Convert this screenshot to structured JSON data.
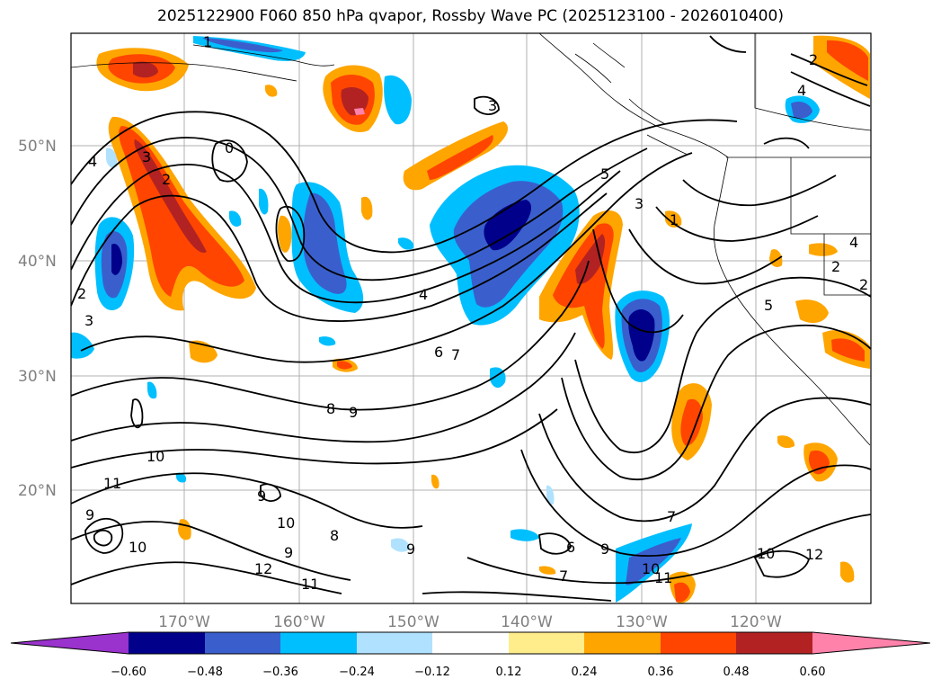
{
  "title": "2025122900 F060 850 hPa qvapor, Rossby Wave PC (2025123100 - 2026010400)",
  "lat_labels": [
    "50°N",
    "40°N",
    "30°N",
    "20°N"
  ],
  "lon_labels": [
    "170°W",
    "160°W",
    "150°W",
    "140°W",
    "130°W",
    "120°W"
  ],
  "colorbar": {
    "ticks": [
      "−0.60",
      "−0.48",
      "−0.36",
      "−0.24",
      "−0.12",
      "0.12",
      "0.24",
      "0.36",
      "0.48",
      "0.60"
    ],
    "colors": [
      "#9a32cd",
      "#00008b",
      "#3a5fcd",
      "#00bfff",
      "#b0e2ff",
      "#ffffff",
      "#ffec8b",
      "#ffa500",
      "#ff4500",
      "#b22222",
      "#ff82ab"
    ]
  },
  "colors": {
    "strong_positive": "#b22222",
    "positive": "#ff4500",
    "weak_positive": "#ffa500",
    "faint_positive": "#ffec8b",
    "strong_negative": "#00008b",
    "negative": "#3a5fcd",
    "weak_negative": "#00bfff",
    "faint_negative": "#b0e2ff"
  },
  "contour_labels": [
    "1",
    "2",
    "3",
    "4",
    "0",
    "2",
    "3",
    "4",
    "5",
    "3",
    "4",
    "6",
    "7",
    "8",
    "9",
    "10",
    "11",
    "9",
    "10",
    "9",
    "12",
    "11",
    "10",
    "9",
    "6",
    "7",
    "9",
    "7",
    "10",
    "12",
    "11",
    "10",
    "8",
    "9",
    "1",
    "2",
    "2",
    "3",
    "4",
    "2",
    "5"
  ]
}
